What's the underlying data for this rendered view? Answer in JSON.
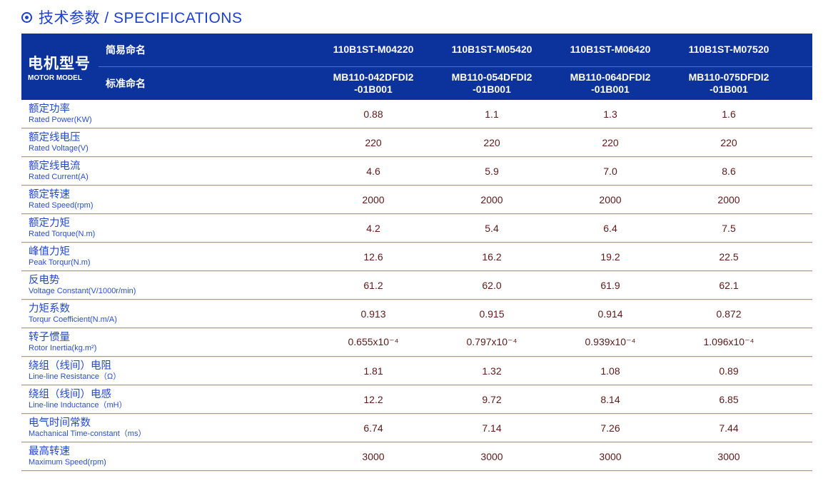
{
  "section": {
    "title": "技术参数 / SPECIFICATIONS",
    "bullet_icon": "circled-dot-icon"
  },
  "colors": {
    "header_blue": "#0c339c",
    "label_blue": "#2448cb",
    "title_blue": "#1c40cf",
    "value_maroon": "#5c1a18",
    "separator_rose": "#c6938d"
  },
  "table": {
    "header": {
      "motor_model_cn": "电机型号",
      "motor_model_en": "MOTOR MODEL",
      "simple_name_label": "简易命名",
      "standard_name_label": "标准命名",
      "simple_names": [
        "110B1ST-M04220",
        "110B1ST-M05420",
        "110B1ST-M06420",
        "110B1ST-M07520"
      ],
      "standard_names": [
        "MB110-042DFDI2\n-01B001",
        "MB110-054DFDI2\n-01B001",
        "MB110-064DFDI2\n-01B001",
        "MB110-075DFDI2\n-01B001"
      ]
    },
    "rows": [
      {
        "label_cn": "额定功率",
        "label_en": "Rated Power(KW)",
        "values": [
          "0.88",
          "1.1",
          "1.3",
          "1.6"
        ]
      },
      {
        "label_cn": "额定线电压",
        "label_en": "Rated Voltage(V)",
        "values": [
          "220",
          "220",
          "220",
          "220"
        ]
      },
      {
        "label_cn": "额定线电流",
        "label_en": "Rated Current(A)",
        "values": [
          "4.6",
          "5.9",
          "7.0",
          "8.6"
        ]
      },
      {
        "label_cn": "额定转速",
        "label_en": "Rated Speed(rpm)",
        "values": [
          "2000",
          "2000",
          "2000",
          "2000"
        ]
      },
      {
        "label_cn": "额定力矩",
        "label_en": "Rated Torque(N.m)",
        "values": [
          "4.2",
          "5.4",
          "6.4",
          "7.5"
        ]
      },
      {
        "label_cn": "峰值力矩",
        "label_en": "Peak Torqur(N.m)",
        "values": [
          "12.6",
          "16.2",
          "19.2",
          "22.5"
        ]
      },
      {
        "label_cn": "反电势",
        "label_en": "Voltage Constant(V/1000r/min)",
        "values": [
          "61.2",
          "62.0",
          "61.9",
          "62.1"
        ]
      },
      {
        "label_cn": "力矩系数",
        "label_en": "Torqur Coefficient(N.m/A)",
        "values": [
          "0.913",
          "0.915",
          "0.914",
          "0.872"
        ]
      },
      {
        "label_cn": "转子惯量",
        "label_en": "Rotor Inertia(kg.m²)",
        "values": [
          "0.655x10⁻⁴",
          "0.797x10⁻⁴",
          "0.939x10⁻⁴",
          "1.096x10⁻⁴"
        ]
      },
      {
        "label_cn": "绕组（线间）电阻",
        "label_en": "Line-line Resistance（Ω）",
        "values": [
          "1.81",
          "1.32",
          "1.08",
          "0.89"
        ]
      },
      {
        "label_cn": "绕组（线间）电感",
        "label_en": "Line-line Inductance（mH）",
        "values": [
          "12.2",
          "9.72",
          "8.14",
          "6.85"
        ]
      },
      {
        "label_cn": "电气时间常数",
        "label_en": "Machanical Time-constant（ms）",
        "values": [
          "6.74",
          "7.14",
          "7.26",
          "7.44"
        ]
      },
      {
        "label_cn": "最高转速",
        "label_en": "Maximum Speed(rpm)",
        "values": [
          "3000",
          "3000",
          "3000",
          "3000"
        ]
      }
    ]
  }
}
